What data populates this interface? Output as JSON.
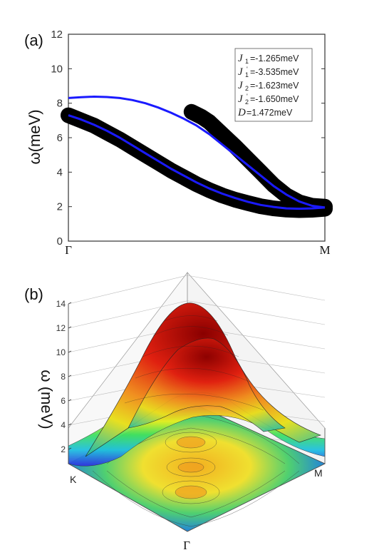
{
  "panel_a": {
    "label": "(a)",
    "ylabel": "ω(meV)",
    "legend": [
      {
        "sym": "J",
        "sub": "1",
        "prime": "",
        "value": "=-1.265meV"
      },
      {
        "sym": "J",
        "sub": "1",
        "prime": "'",
        "value": "=-3.535meV"
      },
      {
        "sym": "J",
        "sub": "2",
        "prime": "",
        "value": "=-1.623meV"
      },
      {
        "sym": "J",
        "sub": "2",
        "prime": "'",
        "value": "=-1.650meV"
      },
      {
        "sym": "D",
        "sub": "",
        "prime": "",
        "value": "=1.472meV"
      }
    ]
  },
  "panel_b": {
    "label": "(b)",
    "zlabel": "ω (meV)",
    "zticks": [
      "2",
      "4",
      "6",
      "8",
      "10",
      "12",
      "14"
    ],
    "corners": {
      "left": "K",
      "right": "M",
      "front": "Γ"
    }
  },
  "chart_data": [
    {
      "type": "line",
      "title": "",
      "xlabel": "",
      "ylabel": "ω(meV)",
      "ylim": [
        0,
        12
      ],
      "yticks": [
        0,
        2,
        4,
        6,
        8,
        10,
        12
      ],
      "x_ticklabels": [
        "Γ",
        "M"
      ],
      "xlim": [
        0,
        1
      ],
      "legend": "top-right",
      "series": [
        {
          "style": "blue line",
          "color": "#1a1aff",
          "x": [
            0,
            0.05,
            0.1,
            0.15,
            0.2,
            0.25,
            0.3,
            0.35,
            0.4,
            0.45,
            0.5,
            0.55,
            0.6,
            0.65,
            0.7,
            0.75,
            0.8,
            0.85,
            0.9,
            0.95,
            1.0
          ],
          "y": [
            8.3,
            8.35,
            8.38,
            8.36,
            8.3,
            8.18,
            8.0,
            7.75,
            7.45,
            7.1,
            6.7,
            6.2,
            5.6,
            5.0,
            4.4,
            3.8,
            3.2,
            2.7,
            2.3,
            2.05,
            1.95
          ]
        },
        {
          "style": "blue line",
          "color": "#1a1aff",
          "x": [
            0,
            0.05,
            0.1,
            0.15,
            0.2,
            0.25,
            0.3,
            0.35,
            0.4,
            0.45,
            0.5,
            0.55,
            0.6,
            0.65,
            0.7,
            0.75,
            0.8,
            0.85,
            0.9,
            0.95,
            1.0
          ],
          "y": [
            7.3,
            7.05,
            6.75,
            6.4,
            6.0,
            5.55,
            5.1,
            4.65,
            4.2,
            3.8,
            3.4,
            3.05,
            2.75,
            2.5,
            2.28,
            2.1,
            1.98,
            1.9,
            1.88,
            1.9,
            1.95
          ]
        },
        {
          "style": "black thick band",
          "color": "#000000",
          "x": [
            0,
            0.05,
            0.1,
            0.15,
            0.2,
            0.25,
            0.3,
            0.35,
            0.4,
            0.45,
            0.5,
            0.55,
            0.6,
            0.65,
            0.7,
            0.75,
            0.8,
            0.85,
            0.9,
            0.95,
            1.0
          ],
          "y": [
            7.3,
            7.0,
            6.7,
            6.3,
            5.9,
            5.45,
            5.0,
            4.55,
            4.1,
            3.7,
            3.3,
            2.95,
            2.65,
            2.4,
            2.2,
            2.02,
            1.9,
            1.83,
            1.8,
            1.82,
            1.88
          ]
        },
        {
          "style": "black thick band",
          "color": "#000000",
          "x": [
            0.48,
            0.52,
            0.55,
            0.6,
            0.65,
            0.7,
            0.75,
            0.8,
            0.85,
            0.9,
            0.95,
            1.0
          ],
          "y": [
            7.5,
            7.2,
            6.9,
            6.2,
            5.5,
            4.75,
            4.0,
            3.25,
            2.65,
            2.25,
            2.05,
            2.0
          ]
        }
      ]
    },
    {
      "type": "surface",
      "zlabel": "ω (meV)",
      "zlim": [
        2,
        14
      ],
      "zticks": [
        2,
        4,
        6,
        8,
        10,
        12,
        14
      ],
      "corner_labels": [
        "K",
        "M",
        "Γ"
      ],
      "peak_z": [
        14,
        12
      ]
    }
  ]
}
